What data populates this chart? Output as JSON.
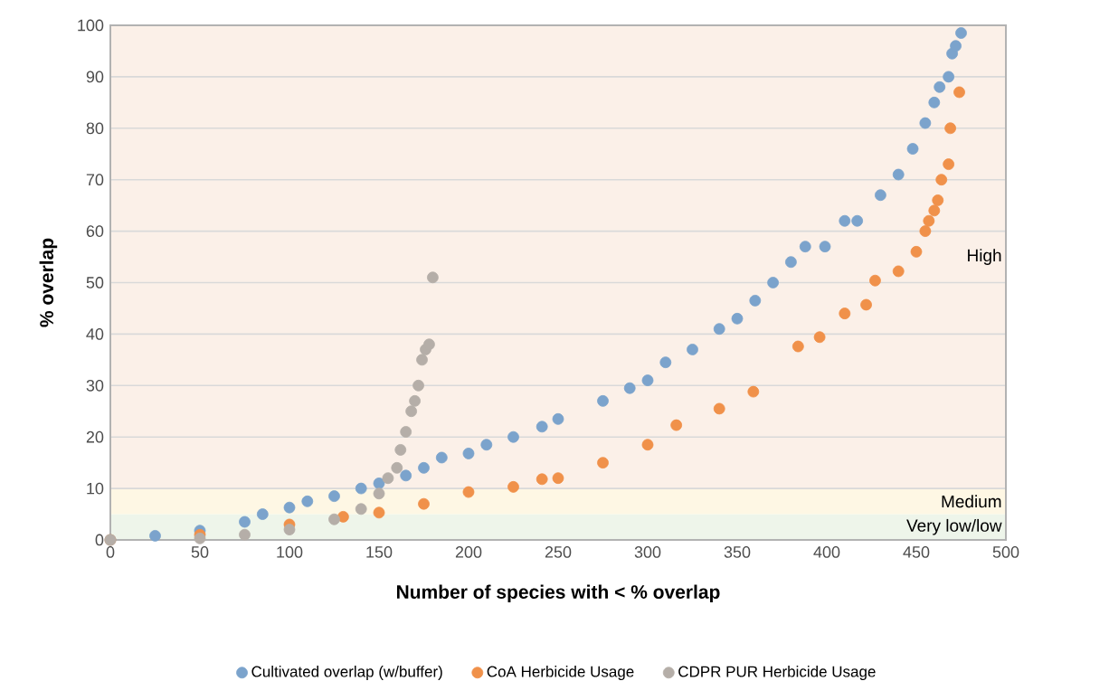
{
  "chart_data": {
    "type": "scatter",
    "xlabel": "Number of species with < % overlap",
    "ylabel": "% overlap",
    "xlim": [
      0,
      500
    ],
    "ylim": [
      0,
      100
    ],
    "xticks": [
      0,
      50,
      100,
      150,
      200,
      250,
      300,
      350,
      400,
      450,
      500
    ],
    "yticks": [
      0,
      10,
      20,
      30,
      40,
      50,
      60,
      70,
      80,
      90,
      100
    ],
    "grid": "y",
    "legend": "bottom",
    "bands": [
      {
        "axis": "y",
        "from": 0,
        "to": 5,
        "label": "Very low/low",
        "color": "#eef5ea"
      },
      {
        "axis": "y",
        "from": 5,
        "to": 10,
        "label": "Medium",
        "color": "#fef7e4"
      },
      {
        "axis": "y",
        "from": 10,
        "to": 100,
        "label": "High",
        "color": "#fbf0e8"
      }
    ],
    "series": [
      {
        "name": "Cultivated overlap (w/buffer)",
        "color": "#7ba3cc",
        "x": [
          0,
          25,
          50,
          75,
          85,
          100,
          110,
          125,
          140,
          150,
          165,
          175,
          185,
          200,
          210,
          225,
          241,
          250,
          275,
          290,
          300,
          310,
          325,
          340,
          350,
          360,
          370,
          380,
          388,
          399,
          410,
          417,
          430,
          440,
          448,
          455,
          460,
          463,
          468,
          470,
          472,
          475
        ],
        "values": [
          0,
          0.8,
          1.8,
          3.5,
          5,
          6.3,
          7.5,
          8.5,
          10,
          11,
          12.5,
          14,
          16,
          16.8,
          18.5,
          20,
          22,
          23.5,
          27,
          29.5,
          31,
          34.5,
          37,
          41,
          43,
          46.5,
          50,
          54,
          57,
          57,
          62,
          62,
          67,
          71,
          76,
          81,
          85,
          88,
          90,
          94.5,
          96,
          98.5
        ]
      },
      {
        "name": "CoA Herbicide Usage",
        "color": "#f0914a",
        "x": [
          0,
          50,
          100,
          130,
          150,
          175,
          200,
          225,
          241,
          250,
          275,
          300,
          316,
          340,
          359,
          384,
          396,
          410,
          422,
          427,
          440,
          450,
          455,
          457,
          460,
          462,
          464,
          468,
          469,
          474
        ],
        "values": [
          0,
          1,
          3,
          4.5,
          5.3,
          7,
          9.3,
          10.3,
          11.8,
          12,
          15,
          18.5,
          22.3,
          25.5,
          28.8,
          37.6,
          39.4,
          44,
          45.7,
          50.4,
          52.2,
          56,
          60,
          62,
          64,
          66,
          70,
          73,
          80,
          87
        ]
      },
      {
        "name": "CDPR PUR Herbicide Usage",
        "color": "#b5aea8",
        "x": [
          0,
          50,
          75,
          100,
          125,
          140,
          150,
          155,
          160,
          162,
          165,
          168,
          170,
          172,
          174,
          176,
          178,
          180
        ],
        "values": [
          0,
          0.3,
          1,
          2,
          4,
          6,
          9,
          12,
          14,
          17.5,
          21,
          25,
          27,
          30,
          35,
          37,
          38,
          51
        ]
      }
    ]
  }
}
